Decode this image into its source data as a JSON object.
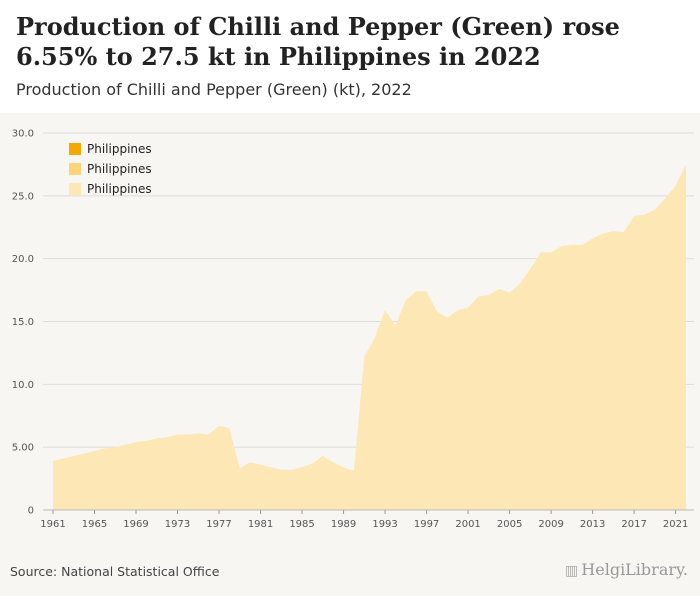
{
  "header": {
    "title": "Production of Chilli and Pepper (Green) rose 6.55% to 27.5 kt in Philippines in 2022",
    "subtitle": "Production of Chilli and Pepper (Green) (kt), 2022"
  },
  "footer": {
    "source": "Source: National Statistical Office",
    "logo": "HelgiLibrary."
  },
  "colors": {
    "area_fill": "#fde7b5",
    "legend_1": "#f5a800",
    "legend_2": "#fcd47a",
    "legend_3": "#fde7b5",
    "grid": "#dddddd",
    "background": "#f7f6f2"
  },
  "chart_data": {
    "type": "area",
    "title": "Production of Chilli and Pepper (Green) rose 6.55% to 27.5 kt in Philippines in 2022",
    "subtitle": "Production of Chilli and Pepper (Green) (kt), 2022",
    "legend": [
      "Philippines",
      "Philippines",
      "Philippines"
    ],
    "legend_position": "top-left",
    "grid": true,
    "ylim": [
      0,
      30
    ],
    "y_ticks": [
      0,
      5,
      10,
      15,
      20,
      25,
      30
    ],
    "y_tick_labels": [
      "0",
      "5.00",
      "10.0",
      "15.0",
      "20.0",
      "25.0",
      "30.0"
    ],
    "x_tick_labels": [
      "1961",
      "1965",
      "1969",
      "1973",
      "1977",
      "1981",
      "1985",
      "1989",
      "1993",
      "1997",
      "2001",
      "2005",
      "2009",
      "2013",
      "2017",
      "2021"
    ],
    "series": [
      {
        "name": "Philippines",
        "x": [
          1961,
          1962,
          1963,
          1964,
          1965,
          1966,
          1967,
          1968,
          1969,
          1970,
          1971,
          1972,
          1973,
          1974,
          1975,
          1976,
          1977,
          1978,
          1979,
          1980,
          1981,
          1982,
          1983,
          1984,
          1985,
          1986,
          1987,
          1988,
          1989,
          1990,
          1991,
          1992,
          1993,
          1994,
          1995,
          1996,
          1997,
          1998,
          1999,
          2000,
          2001,
          2002,
          2003,
          2004,
          2005,
          2006,
          2007,
          2008,
          2009,
          2010,
          2011,
          2012,
          2013,
          2014,
          2015,
          2016,
          2017,
          2018,
          2019,
          2020,
          2021,
          2022
        ],
        "values": [
          3.9,
          4.1,
          4.3,
          4.5,
          4.7,
          4.9,
          5.0,
          5.2,
          5.4,
          5.5,
          5.7,
          5.8,
          6.0,
          6.0,
          6.1,
          6.0,
          6.7,
          6.5,
          3.3,
          3.8,
          3.6,
          3.4,
          3.2,
          3.2,
          3.4,
          3.7,
          4.3,
          3.8,
          3.4,
          3.1,
          12.2,
          13.7,
          15.9,
          14.7,
          16.7,
          17.4,
          17.4,
          15.8,
          15.3,
          15.9,
          16.1,
          17.0,
          17.1,
          17.6,
          17.3,
          18.0,
          19.2,
          20.5,
          20.5,
          21.0,
          21.1,
          21.1,
          21.6,
          22.0,
          22.2,
          22.1,
          23.4,
          23.5,
          23.9,
          24.8,
          25.8,
          27.5
        ]
      }
    ]
  }
}
